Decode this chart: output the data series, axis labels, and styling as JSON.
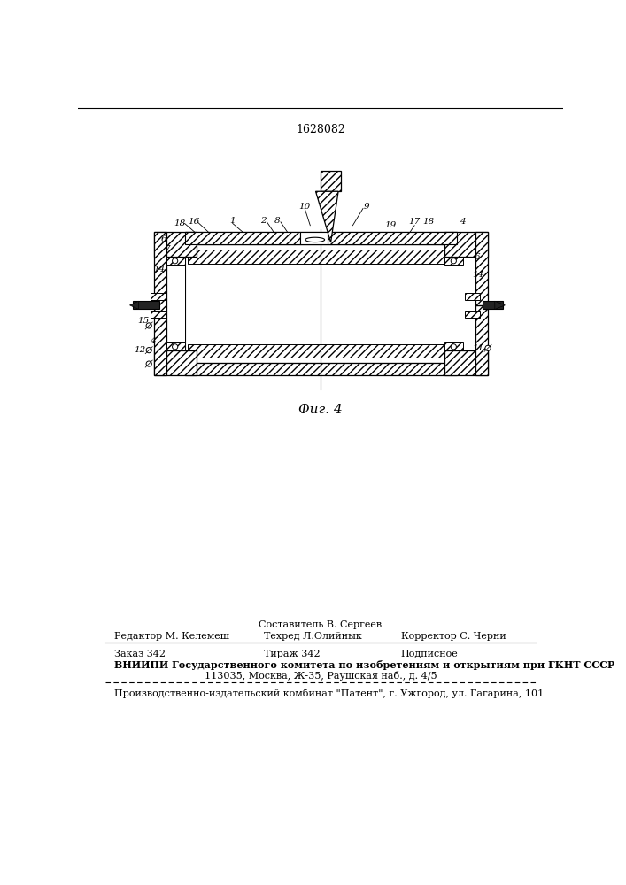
{
  "patent_number": "1628082",
  "fig_label": "Фиг. 4",
  "bg_color": "#ffffff",
  "footer_above_line1": "Составитель В. Сергеев",
  "footer_line1_left": "Редактор М. Келемеш",
  "footer_line1_center": "Техред Л.Олийнык",
  "footer_line1_right": "Корректор С. Черни",
  "footer_line2_left": "Заказ 342",
  "footer_line2_center": "Тираж 342",
  "footer_line2_right": "Подписное",
  "footer_line3": "ВНИИПИ Государственного комитета по изобретениям и открытиям при ГКНТ СССР",
  "footer_line4": "113035, Москва, Ж-35, Раушская наб., д. 4/5",
  "footer_line5": "Производственно-издательский комбинат \"Патент\", г. Ужгород, ул. Гагарина, 101"
}
